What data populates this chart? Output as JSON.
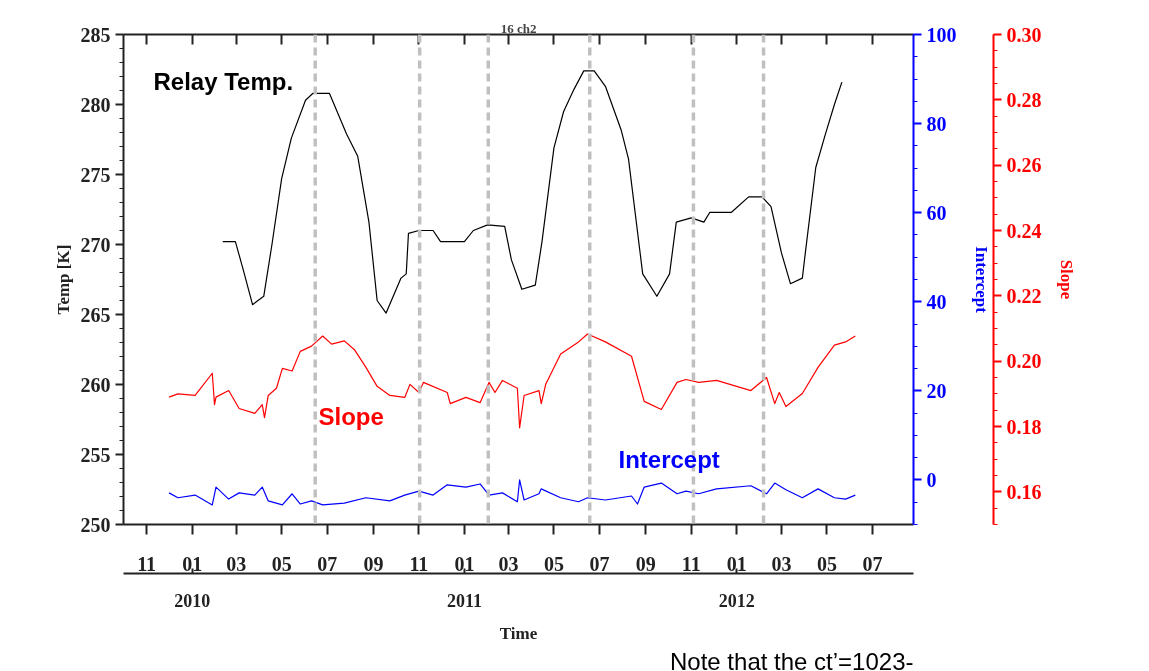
{
  "chart_data": {
    "type": "line",
    "title": "16 ch2",
    "xlabel": "Time",
    "ylabel": "Temp [K]",
    "y2label": "Intercept",
    "y3label": "Slope",
    "xlim": [
      "2009-10-01",
      "2012-08-25"
    ],
    "xticks": [
      {
        "value": "2009-11-01",
        "label": "11"
      },
      {
        "value": "2010-01-01",
        "label": "01"
      },
      {
        "value": "2010-03-01",
        "label": "03"
      },
      {
        "value": "2010-05-01",
        "label": "05"
      },
      {
        "value": "2010-07-01",
        "label": "07"
      },
      {
        "value": "2010-09-01",
        "label": "09"
      },
      {
        "value": "2010-11-01",
        "label": "11"
      },
      {
        "value": "2011-01-01",
        "label": "01"
      },
      {
        "value": "2011-03-01",
        "label": "03"
      },
      {
        "value": "2011-05-01",
        "label": "05"
      },
      {
        "value": "2011-07-01",
        "label": "07"
      },
      {
        "value": "2011-09-01",
        "label": "09"
      },
      {
        "value": "2011-11-01",
        "label": "11"
      },
      {
        "value": "2012-01-01",
        "label": "01"
      },
      {
        "value": "2012-03-01",
        "label": "03"
      },
      {
        "value": "2012-05-01",
        "label": "05"
      },
      {
        "value": "2012-07-01",
        "label": "07"
      }
    ],
    "x2lim": [
      "2009-10-01",
      "2012-08-25"
    ],
    "x2ticks": [
      {
        "value": "2010-01-01",
        "label": "2010"
      },
      {
        "value": "2011-01-01",
        "label": "2011"
      },
      {
        "value": "2012-01-01",
        "label": "2012"
      }
    ],
    "ylim": [
      250,
      285
    ],
    "yticks": [
      250,
      255,
      260,
      265,
      270,
      275,
      280,
      285
    ],
    "y2lim": [
      -10,
      100
    ],
    "y2ticks": [
      0,
      20,
      40,
      60,
      80,
      100
    ],
    "y3lim": [
      0.15,
      0.3
    ],
    "y3ticks": [
      0.16,
      0.18,
      {
        "value": 0.2,
        "label": "0.20"
      },
      0.22,
      0.24,
      0.26,
      0.28,
      {
        "value": 0.3,
        "label": "0.30"
      }
    ],
    "series": [
      {
        "name": "Relay Temp.",
        "color": "#000000",
        "x": [
          "2010-02-11",
          "2010-02-28",
          "2010-03-10",
          "2010-03-23",
          "2010-04-07",
          "2010-04-18",
          "2010-05-01",
          "2010-05-14",
          "2010-06-02",
          "2010-06-12",
          "2010-07-04",
          "2010-07-27",
          "2010-08-11",
          "2010-08-26",
          "2010-09-06",
          "2010-09-18",
          "2010-10-08",
          "2010-10-15",
          "2010-10-18",
          "2010-11-01",
          "2010-11-20",
          "2010-11-30",
          "2011-01-01",
          "2011-01-13",
          "2011-02-01",
          "2011-02-24",
          "2011-03-05",
          "2011-03-19",
          "2011-04-06",
          "2011-04-15",
          "2011-05-01",
          "2011-05-14",
          "2011-05-28",
          "2011-06-10",
          "2011-06-24",
          "2011-07-09",
          "2011-07-30",
          "2011-08-09",
          "2011-08-28",
          "2011-09-16",
          "2011-10-03",
          "2011-10-12",
          "2011-11-01",
          "2011-11-18",
          "2011-11-26",
          "2011-12-25",
          "2012-01-17",
          "2012-02-04",
          "2012-02-16",
          "2012-03-01",
          "2012-03-13",
          "2012-03-29",
          "2012-04-02",
          "2012-04-16",
          "2012-04-29",
          "2012-05-11",
          "2012-05-21"
        ],
        "values": [
          270.2,
          270.2,
          268.3,
          265.7,
          266.3,
          270.0,
          274.7,
          277.6,
          280.3,
          280.8,
          280.8,
          277.9,
          276.3,
          271.6,
          266.0,
          265.1,
          267.6,
          267.9,
          270.8,
          271.0,
          271.0,
          270.2,
          270.2,
          271.0,
          271.4,
          271.3,
          268.9,
          266.8,
          267.1,
          270.2,
          276.9,
          279.5,
          281.1,
          282.4,
          282.4,
          281.3,
          278.2,
          276.1,
          267.9,
          266.3,
          267.9,
          271.6,
          271.9,
          271.6,
          272.3,
          272.3,
          273.4,
          273.4,
          272.7,
          269.4,
          267.2,
          267.6,
          269.4,
          275.5,
          277.9,
          280.0,
          281.6
        ]
      },
      {
        "name": "Slope",
        "color": "#ff0000",
        "axis": "y3",
        "x": [
          "2009-12-01",
          "2009-12-13",
          "2010-01-05",
          "2010-01-28",
          "2010-01-31",
          "2010-02-02",
          "2010-02-19",
          "2010-03-05",
          "2010-03-26",
          "2010-04-05",
          "2010-04-08",
          "2010-04-13",
          "2010-04-24",
          "2010-05-02",
          "2010-05-15",
          "2010-05-26",
          "2010-06-10",
          "2010-06-25",
          "2010-07-07",
          "2010-07-24",
          "2010-08-07",
          "2010-08-22",
          "2010-09-06",
          "2010-09-23",
          "2010-10-13",
          "2010-10-20",
          "2010-11-01",
          "2010-11-07",
          "2010-12-09",
          "2010-12-13",
          "2011-01-03",
          "2011-01-22",
          "2011-02-03",
          "2011-02-11",
          "2011-02-21",
          "2011-03-13",
          "2011-03-16",
          "2011-03-22",
          "2011-04-11",
          "2011-04-14",
          "2011-04-20",
          "2011-05-10",
          "2011-06-03",
          "2011-06-15",
          "2011-07-09",
          "2011-08-13",
          "2011-08-30",
          "2011-09-22",
          "2011-10-13",
          "2011-10-25",
          "2011-11-11",
          "2011-12-05",
          "2012-01-20",
          "2012-02-10",
          "2012-02-21",
          "2012-02-27",
          "2012-03-07",
          "2012-03-29",
          "2012-04-19",
          "2012-05-11",
          "2012-05-26",
          "2012-06-08"
        ],
        "values": [
          0.189,
          0.19,
          0.1895,
          0.1963,
          0.1867,
          0.189,
          0.191,
          0.1855,
          0.184,
          0.1867,
          0.1827,
          0.1895,
          0.1917,
          0.1978,
          0.197,
          0.203,
          0.2046,
          0.2077,
          0.2052,
          0.2062,
          0.2034,
          0.1981,
          0.1923,
          0.1895,
          0.1889,
          0.1929,
          0.1904,
          0.1935,
          0.1904,
          0.187,
          0.1889,
          0.1873,
          0.1935,
          0.1904,
          0.1941,
          0.1917,
          0.1796,
          0.1895,
          0.191,
          0.187,
          0.1929,
          0.2022,
          0.2059,
          0.2083,
          0.2059,
          0.2015,
          0.1877,
          0.1852,
          0.1935,
          0.1944,
          0.1935,
          0.1941,
          0.191,
          0.195,
          0.187,
          0.1904,
          0.1861,
          0.1901,
          0.1981,
          0.2049,
          0.2059,
          0.2077
        ]
      },
      {
        "name": "Intercept",
        "color": "#0000ff",
        "axis": "y2",
        "x": [
          "2009-12-01",
          "2009-12-13",
          "2010-01-05",
          "2010-01-28",
          "2010-02-02",
          "2010-02-19",
          "2010-03-05",
          "2010-03-26",
          "2010-04-05",
          "2010-04-13",
          "2010-05-02",
          "2010-05-15",
          "2010-05-26",
          "2010-06-10",
          "2010-06-25",
          "2010-07-24",
          "2010-08-22",
          "2010-09-23",
          "2010-10-13",
          "2010-11-01",
          "2010-11-20",
          "2010-12-09",
          "2011-01-03",
          "2011-01-22",
          "2011-02-03",
          "2011-02-21",
          "2011-03-13",
          "2011-03-16",
          "2011-03-22",
          "2011-04-11",
          "2011-04-14",
          "2011-05-10",
          "2011-06-03",
          "2011-06-15",
          "2011-07-09",
          "2011-08-13",
          "2011-08-21",
          "2011-08-30",
          "2011-09-22",
          "2011-10-13",
          "2011-10-25",
          "2011-11-11",
          "2011-12-05",
          "2012-01-20",
          "2012-02-10",
          "2012-02-21",
          "2012-03-07",
          "2012-03-29",
          "2012-04-19",
          "2012-05-11",
          "2012-05-26",
          "2012-06-08"
        ],
        "values": [
          -2.9,
          -4.0,
          -3.4,
          -5.6,
          -1.6,
          -4.3,
          -2.9,
          -3.4,
          -1.6,
          -4.7,
          -5.6,
          -3.1,
          -5.4,
          -4.7,
          -5.6,
          -5.2,
          -4.0,
          -4.7,
          -3.4,
          -2.5,
          -3.4,
          -1.1,
          -1.6,
          -0.9,
          -3.4,
          -2.9,
          -4.9,
          0.0,
          -4.5,
          -3.1,
          -2.0,
          -4.0,
          -4.9,
          -4.0,
          -4.5,
          -3.6,
          -5.4,
          -1.6,
          -0.7,
          -3.1,
          -2.5,
          -3.1,
          -2.0,
          -1.3,
          -3.1,
          -0.7,
          -2.2,
          -4.0,
          -2.0,
          -4.0,
          -4.3,
          -3.4
        ]
      }
    ],
    "ref_lines": [
      {
        "axis": "x",
        "value": "2010-06-15",
        "color": "#c0c0c0",
        "line_style": "dashed"
      },
      {
        "axis": "x",
        "value": "2010-11-02",
        "color": "#c0c0c0",
        "line_style": "dashed"
      },
      {
        "axis": "x",
        "value": "2011-02-02",
        "color": "#c0c0c0",
        "line_style": "dashed"
      },
      {
        "axis": "x",
        "value": "2011-06-18",
        "color": "#c0c0c0",
        "line_style": "dashed"
      },
      {
        "axis": "x",
        "value": "2011-11-04",
        "color": "#c0c0c0",
        "line_style": "dashed"
      },
      {
        "axis": "x",
        "value": "2012-02-06",
        "color": "#c0c0c0",
        "line_style": "dashed"
      }
    ],
    "annotations": [
      "Note that the ct’=1023-"
    ]
  }
}
